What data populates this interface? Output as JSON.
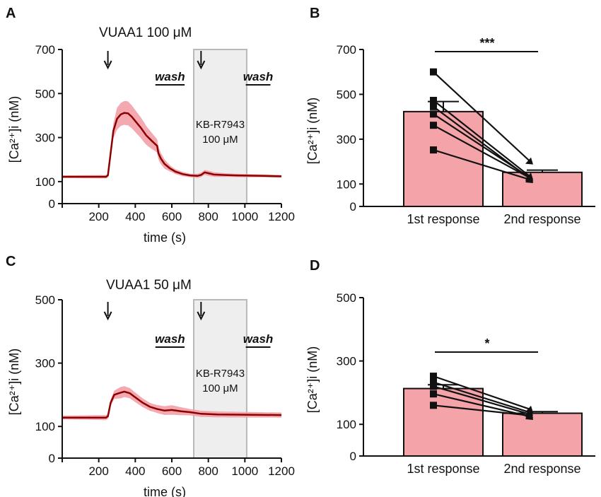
{
  "chart_data": [
    {
      "panel": "A",
      "type": "line",
      "condition": "VUAA1 100 μM",
      "xlabel": "time (s)",
      "ylabel": "[Ca²⁺]i (nM)",
      "xlim": [
        0,
        1200
      ],
      "ylim": [
        0,
        700
      ],
      "xticks": [
        "200",
        "400",
        "600",
        "800",
        "1000",
        "1200"
      ],
      "yticks": [
        "0",
        "100",
        "300",
        "500",
        "700"
      ],
      "arrows_at_s": [
        250,
        760
      ],
      "shaded_interval_s": [
        720,
        1010
      ],
      "shaded_label_line1": "KB-R7943",
      "shaded_label_line2": "100 μM",
      "wash_label": "wash",
      "wash_intervals_s": [
        [
          510,
          670
        ],
        [
          1005,
          1140
        ]
      ],
      "mean_trace": [
        [
          0,
          122
        ],
        [
          240,
          122
        ],
        [
          250,
          128
        ],
        [
          265,
          230
        ],
        [
          280,
          330
        ],
        [
          300,
          385
        ],
        [
          320,
          405
        ],
        [
          340,
          412
        ],
        [
          360,
          410
        ],
        [
          380,
          395
        ],
        [
          400,
          375
        ],
        [
          430,
          345
        ],
        [
          460,
          310
        ],
        [
          490,
          285
        ],
        [
          520,
          262
        ],
        [
          526,
          230
        ],
        [
          540,
          205
        ],
        [
          560,
          180
        ],
        [
          590,
          160
        ],
        [
          620,
          145
        ],
        [
          660,
          134
        ],
        [
          700,
          128
        ],
        [
          740,
          126
        ],
        [
          760,
          130
        ],
        [
          780,
          142
        ],
        [
          800,
          138
        ],
        [
          830,
          132
        ],
        [
          880,
          130
        ],
        [
          950,
          128
        ],
        [
          1010,
          127
        ],
        [
          1100,
          126
        ],
        [
          1200,
          124
        ]
      ],
      "sem_width": [
        [
          0,
          6
        ],
        [
          250,
          8
        ],
        [
          300,
          50
        ],
        [
          350,
          55
        ],
        [
          450,
          45
        ],
        [
          520,
          30
        ],
        [
          600,
          12
        ],
        [
          700,
          8
        ],
        [
          760,
          10
        ],
        [
          800,
          12
        ],
        [
          900,
          8
        ],
        [
          1200,
          6
        ]
      ],
      "line_color": "#8b0000",
      "band_color": "#f2a0a6"
    },
    {
      "panel": "B",
      "type": "bar",
      "categories": [
        "1st response",
        "2nd response"
      ],
      "values": [
        423,
        152
      ],
      "errors": [
        45,
        10
      ],
      "ylabel": "[Ca²⁺]i (nM)",
      "ylim": [
        0,
        700
      ],
      "yticks": [
        "0",
        "100",
        "300",
        "500",
        "700"
      ],
      "paired_points": [
        [
          600,
          203
        ],
        [
          473,
          135
        ],
        [
          445,
          125
        ],
        [
          412,
          130
        ],
        [
          362,
          128
        ],
        [
          252,
          120
        ]
      ],
      "significance": "***",
      "bar_color": "#f4a3a8"
    },
    {
      "panel": "C",
      "type": "line",
      "condition": "VUAA1 50 μM",
      "xlabel": "time (s)",
      "ylabel": "[Ca²⁺]i (nM)",
      "xlim": [
        0,
        1200
      ],
      "ylim": [
        0,
        500
      ],
      "xticks": [
        "200",
        "400",
        "600",
        "800",
        "1000",
        "1200"
      ],
      "yticks": [
        "0",
        "100",
        "300",
        "500"
      ],
      "arrows_at_s": [
        250,
        760
      ],
      "shaded_interval_s": [
        720,
        1010
      ],
      "shaded_label_line1": "KB-R7943",
      "shaded_label_line2": "100 μM",
      "wash_label": "wash",
      "wash_intervals_s": [
        [
          510,
          670
        ],
        [
          1005,
          1140
        ]
      ],
      "mean_trace": [
        [
          0,
          128
        ],
        [
          240,
          128
        ],
        [
          250,
          132
        ],
        [
          265,
          175
        ],
        [
          285,
          200
        ],
        [
          310,
          205
        ],
        [
          340,
          210
        ],
        [
          370,
          205
        ],
        [
          400,
          192
        ],
        [
          440,
          175
        ],
        [
          480,
          162
        ],
        [
          520,
          155
        ],
        [
          560,
          150
        ],
        [
          600,
          152
        ],
        [
          650,
          148
        ],
        [
          700,
          145
        ],
        [
          760,
          140
        ],
        [
          850,
          138
        ],
        [
          1000,
          137
        ],
        [
          1200,
          136
        ]
      ],
      "sem_width": [
        [
          0,
          6
        ],
        [
          250,
          8
        ],
        [
          320,
          18
        ],
        [
          400,
          15
        ],
        [
          500,
          12
        ],
        [
          600,
          15
        ],
        [
          700,
          10
        ],
        [
          1200,
          8
        ]
      ],
      "line_color": "#8b0000",
      "band_color": "#f2a0a6"
    },
    {
      "panel": "D",
      "type": "bar",
      "categories": [
        "1st response",
        "2nd response"
      ],
      "values": [
        213,
        135
      ],
      "errors": [
        12,
        5
      ],
      "ylabel": "[Ca²⁺]i (nM)",
      "ylim": [
        0,
        500
      ],
      "yticks": [
        "0",
        "100",
        "300",
        "500"
      ],
      "paired_points": [
        [
          252,
          148
        ],
        [
          233,
          138
        ],
        [
          220,
          132
        ],
        [
          196,
          125
        ],
        [
          160,
          128
        ]
      ],
      "significance": "*",
      "bar_color": "#f4a3a8"
    }
  ],
  "labels": {
    "A": "A",
    "B": "B",
    "C": "C",
    "D": "D"
  }
}
